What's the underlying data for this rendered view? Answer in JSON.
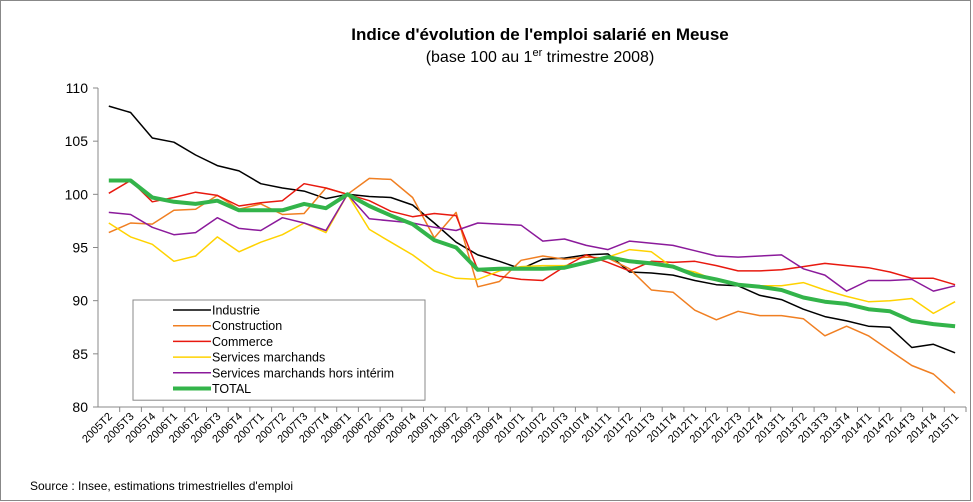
{
  "chart_data": {
    "type": "line",
    "title": "Indice d'évolution de l'emploi salarié en Meuse",
    "subtitle": [
      "(base 100 au 1",
      "er",
      " trimestre 2008)"
    ],
    "source": "Source : Insee, estimations trimestrielles d'emploi",
    "categories": [
      "2005T2",
      "2005T3",
      "2005T4",
      "2006T1",
      "2006T2",
      "2006T3",
      "2006T4",
      "2007T1",
      "2007T2",
      "2007T3",
      "2007T4",
      "2008T1",
      "2008T2",
      "2008T3",
      "2008T4",
      "2009T1",
      "2009T2",
      "2009T3",
      "2009T4",
      "2010T1",
      "2010T2",
      "2010T3",
      "2010T4",
      "2011T1",
      "2011T2",
      "2011T3",
      "2011T4",
      "2012T1",
      "2012T2",
      "2012T3",
      "2012T4",
      "2013T1",
      "2013T2",
      "2013T3",
      "2013T4",
      "2014T1",
      "2014T2",
      "2014T3",
      "2014T4",
      "2015T1"
    ],
    "ylim": [
      80,
      110
    ],
    "yticks": [
      80,
      85,
      90,
      95,
      100,
      105,
      110
    ],
    "series": [
      {
        "name": "Industrie",
        "color": "#000000",
        "values": [
          108.3,
          107.7,
          105.3,
          104.9,
          103.7,
          102.7,
          102.2,
          101.0,
          100.6,
          100.3,
          99.6,
          100.0,
          99.8,
          99.7,
          99.0,
          97.3,
          95.5,
          94.3,
          93.7,
          93.0,
          93.9,
          94.0,
          94.3,
          94.4,
          92.7,
          92.6,
          92.4,
          91.9,
          91.5,
          91.4,
          90.5,
          90.1,
          89.2,
          88.5,
          88.1,
          87.6,
          87.5,
          85.6,
          85.9,
          85.1
        ]
      },
      {
        "name": "Construction",
        "color": "#f07f22",
        "values": [
          96.4,
          97.3,
          97.2,
          98.5,
          98.6,
          99.9,
          98.6,
          99.1,
          98.1,
          98.2,
          100.6,
          100.0,
          101.5,
          101.4,
          99.7,
          95.9,
          98.3,
          91.3,
          91.8,
          93.8,
          94.2,
          93.9,
          94.1,
          94.0,
          93.0,
          91.0,
          90.8,
          89.1,
          88.2,
          89.0,
          88.6,
          88.6,
          88.3,
          86.7,
          87.6,
          86.7,
          85.3,
          83.9,
          83.1,
          81.3
        ]
      },
      {
        "name": "Commerce",
        "color": "#e8190f",
        "values": [
          100.1,
          101.3,
          99.3,
          99.7,
          100.2,
          99.9,
          98.9,
          99.2,
          99.4,
          101.0,
          100.6,
          100.0,
          99.4,
          98.4,
          97.9,
          98.2,
          98.0,
          92.9,
          92.3,
          92.0,
          91.9,
          93.2,
          94.3,
          93.6,
          92.8,
          93.7,
          93.6,
          93.7,
          93.3,
          92.8,
          92.8,
          92.9,
          93.2,
          93.5,
          93.3,
          93.1,
          92.7,
          92.1,
          92.1,
          91.5
        ]
      },
      {
        "name": "Services marchands",
        "color": "#ffd200",
        "values": [
          97.3,
          96.0,
          95.3,
          93.7,
          94.2,
          96.0,
          94.6,
          95.5,
          96.2,
          97.3,
          96.4,
          100.0,
          96.7,
          95.5,
          94.3,
          92.8,
          92.1,
          92.0,
          92.8,
          93.2,
          93.3,
          93.3,
          93.5,
          94.1,
          94.8,
          94.6,
          93.1,
          92.7,
          91.9,
          91.5,
          91.4,
          91.4,
          91.7,
          91.0,
          90.4,
          89.9,
          90.0,
          90.2,
          88.8,
          89.9
        ]
      },
      {
        "name": "Services marchands hors intérim",
        "color": "#8b1a9b",
        "values": [
          98.3,
          98.1,
          96.9,
          96.2,
          96.4,
          97.8,
          96.8,
          96.6,
          97.8,
          97.3,
          96.6,
          100.0,
          97.7,
          97.5,
          97.3,
          96.9,
          96.6,
          97.3,
          97.2,
          97.1,
          95.6,
          95.8,
          95.2,
          94.8,
          95.6,
          95.4,
          95.2,
          94.7,
          94.2,
          94.1,
          94.2,
          94.3,
          93.0,
          92.4,
          90.9,
          91.9,
          91.9,
          92.0,
          90.9,
          91.4
        ]
      },
      {
        "name": "TOTAL",
        "color": "#33b44a",
        "values": [
          101.3,
          101.3,
          99.7,
          99.3,
          99.1,
          99.4,
          98.5,
          98.5,
          98.5,
          99.1,
          98.7,
          100.0,
          98.9,
          98.0,
          97.2,
          95.7,
          95.0,
          92.9,
          93.0,
          93.0,
          93.0,
          93.1,
          93.6,
          94.1,
          93.7,
          93.5,
          93.2,
          92.4,
          92.0,
          91.5,
          91.3,
          91.0,
          90.3,
          89.9,
          89.7,
          89.2,
          89.0,
          88.1,
          87.8,
          87.6
        ]
      }
    ]
  }
}
